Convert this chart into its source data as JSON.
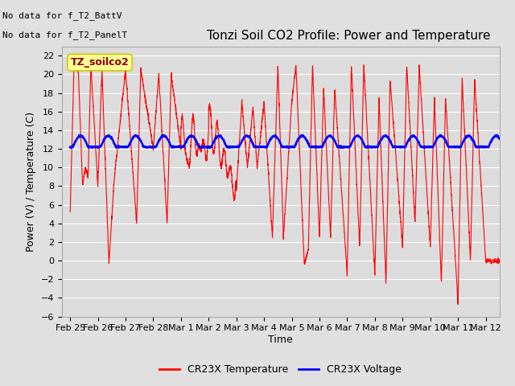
{
  "title": "Tonzi Soil CO2 Profile: Power and Temperature",
  "ylabel": "Power (V) / Temperature (C)",
  "xlabel": "Time",
  "no_data_text1": "No data for f_T2_BattV",
  "no_data_text2": "No data for f_T2_PanelT",
  "label_box": "TZ_soilco2",
  "ylim": [
    -6,
    23
  ],
  "yticks": [
    -6,
    -4,
    -2,
    0,
    2,
    4,
    6,
    8,
    10,
    12,
    14,
    16,
    18,
    20,
    22
  ],
  "xlim_start": -0.3,
  "xlim_end": 15.5,
  "x_tick_labels": [
    "Feb 25",
    "Feb 26",
    "Feb 27",
    "Feb 28",
    "Mar 1",
    "Mar 2",
    "Mar 3",
    "Mar 4",
    "Mar 5",
    "Mar 6",
    "Mar 7",
    "Mar 8",
    "Mar 9",
    "Mar 10",
    "Mar 11",
    "Mar 12"
  ],
  "x_tick_positions": [
    0,
    1,
    2,
    3,
    4,
    5,
    6,
    7,
    8,
    9,
    10,
    11,
    12,
    13,
    14,
    15
  ],
  "legend_temp_label": "CR23X Temperature",
  "legend_volt_label": "CR23X Voltage",
  "red_color": "#FF0000",
  "blue_color": "#0000FF",
  "fig_bg_color": "#E0E0E0",
  "plot_bg_color": "#DCDCDC",
  "grid_color": "#FFFFFF",
  "box_facecolor": "#FFFF99",
  "box_edgecolor": "#CCCC00",
  "title_fontsize": 11,
  "tick_fontsize": 8,
  "label_fontsize": 9
}
